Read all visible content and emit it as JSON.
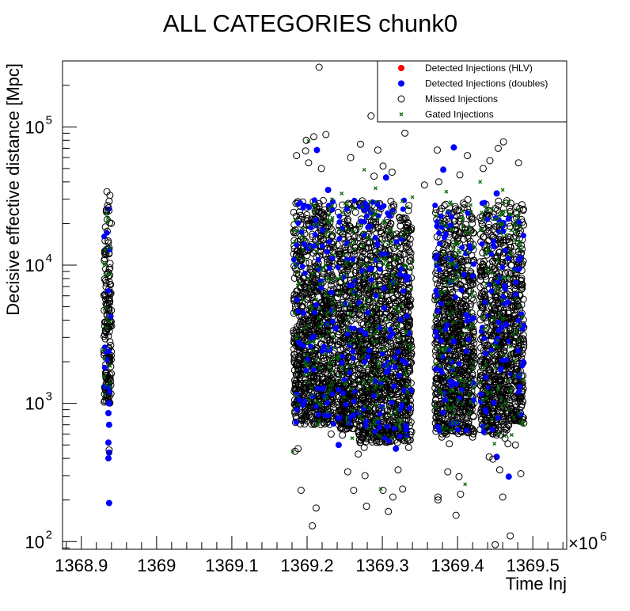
{
  "chart_data": {
    "type": "scatter",
    "title": "ALL CATEGORIES chunk0",
    "xlabel": "Time Inj",
    "ylabel": "Decisive effective distance [Mpc]",
    "x_multiplier_label": "×10",
    "x_multiplier_exp": "6",
    "xlim": [
      1368.875,
      1369.545
    ],
    "ylim": [
      88,
      300000
    ],
    "yscale": "log",
    "x_ticks": [
      "1368.9",
      "1369",
      "1369.1",
      "1369.2",
      "1369.3",
      "1369.4",
      "1369.5"
    ],
    "x_tick_values": [
      1368.9,
      1369.0,
      1369.1,
      1369.2,
      1369.3,
      1369.4,
      1369.5
    ],
    "y_ticks": [
      {
        "base": "10",
        "exp": "2",
        "value": 100
      },
      {
        "base": "10",
        "exp": "3",
        "value": 1000
      },
      {
        "base": "10",
        "exp": "4",
        "value": 10000
      },
      {
        "base": "10",
        "exp": "5",
        "value": 100000
      }
    ],
    "legend_position": "top-right",
    "series": [
      {
        "name": "Detected Injections (HLV)",
        "color": "#ff0000",
        "marker": "filled-circle",
        "points": []
      },
      {
        "name": "Detected Injections (doubles)",
        "color": "#0000ff",
        "marker": "filled-circle",
        "points": [
          [
            1368.937,
            190
          ],
          [
            1368.936,
            400
          ],
          [
            1368.937,
            440
          ],
          [
            1368.936,
            520
          ],
          [
            1368.937,
            700
          ],
          [
            1368.936,
            850
          ],
          [
            1368.937,
            1000
          ],
          [
            1369.213,
            68000
          ],
          [
            1369.228,
            35000
          ],
          [
            1369.305,
            43000
          ],
          [
            1369.381,
            49000
          ],
          [
            1369.395,
            71000
          ],
          [
            1369.452,
            33000
          ],
          [
            1369.452,
            410
          ],
          [
            1369.468,
            295
          ],
          [
            1369.242,
            500
          ],
          [
            1369.318,
            470
          ],
          [
            1369.332,
            650
          ],
          [
            1369.395,
            2800
          ],
          [
            1369.238,
            3500
          ]
        ]
      },
      {
        "name": "Missed Injections",
        "color": "#000000",
        "marker": "open-circle",
        "points": [
          [
            1368.934,
            34000
          ],
          [
            1368.938,
            32000
          ],
          [
            1368.937,
            29000
          ],
          [
            1368.935,
            27000
          ],
          [
            1368.936,
            26000
          ],
          [
            1368.937,
            460
          ],
          [
            1369.216,
            270000
          ],
          [
            1369.285,
            120000
          ],
          [
            1369.321,
            135000
          ],
          [
            1369.33,
            90000
          ],
          [
            1369.209,
            85000
          ],
          [
            1369.199,
            80000
          ],
          [
            1369.225,
            88000
          ],
          [
            1369.271,
            75000
          ],
          [
            1369.198,
            67000
          ],
          [
            1369.186,
            62000
          ],
          [
            1369.258,
            60000
          ],
          [
            1369.294,
            68000
          ],
          [
            1369.202,
            55000
          ],
          [
            1369.219,
            50000
          ],
          [
            1369.301,
            52000
          ],
          [
            1369.313,
            47000
          ],
          [
            1369.373,
            68000
          ],
          [
            1369.413,
            62000
          ],
          [
            1369.443,
            57000
          ],
          [
            1369.461,
            78000
          ],
          [
            1369.454,
            70000
          ],
          [
            1369.481,
            55000
          ],
          [
            1369.434,
            50000
          ],
          [
            1369.403,
            45000
          ],
          [
            1369.375,
            40000
          ],
          [
            1369.356,
            38000
          ],
          [
            1369.289,
            44000
          ],
          [
            1369.192,
            235
          ],
          [
            1369.207,
            130
          ],
          [
            1369.212,
            175
          ],
          [
            1369.254,
            320
          ],
          [
            1369.262,
            235
          ],
          [
            1369.276,
            480
          ],
          [
            1369.277,
            300
          ],
          [
            1369.279,
            180
          ],
          [
            1369.301,
            235
          ],
          [
            1369.308,
            165
          ],
          [
            1369.314,
            210
          ],
          [
            1369.321,
            330
          ],
          [
            1369.327,
            240
          ],
          [
            1369.335,
            480
          ],
          [
            1369.297,
            530
          ],
          [
            1369.284,
            590
          ],
          [
            1369.268,
            430
          ],
          [
            1369.374,
            200
          ],
          [
            1369.374,
            210
          ],
          [
            1369.387,
            320
          ],
          [
            1369.389,
            510
          ],
          [
            1369.398,
            155
          ],
          [
            1369.402,
            295
          ],
          [
            1369.404,
            220
          ],
          [
            1369.379,
            570
          ],
          [
            1369.42,
            570
          ],
          [
            1369.442,
            410
          ],
          [
            1369.447,
            395
          ],
          [
            1369.456,
            330
          ],
          [
            1369.46,
            210
          ],
          [
            1369.463,
            560
          ],
          [
            1369.467,
            510
          ],
          [
            1369.47,
            110
          ],
          [
            1369.477,
            500
          ],
          [
            1369.484,
            310
          ],
          [
            1369.45,
            95
          ],
          [
            1369.184,
            450
          ],
          [
            1369.188,
            470
          ],
          [
            1369.232,
            600
          ],
          [
            1369.247,
            590
          ],
          [
            1369.251,
            650
          ],
          [
            1369.301,
            610
          ],
          [
            1369.333,
            560
          ]
        ]
      },
      {
        "name": "Gated Injections",
        "color": "#006400",
        "marker": "x",
        "points": [
          [
            1369.202,
            79000
          ],
          [
            1369.276,
            49000
          ],
          [
            1369.291,
            36000
          ],
          [
            1369.34,
            31000
          ],
          [
            1369.181,
            450
          ],
          [
            1369.26,
            560
          ],
          [
            1369.298,
            240
          ],
          [
            1369.41,
            260
          ],
          [
            1369.449,
            510
          ],
          [
            1369.46,
            35000
          ],
          [
            1369.43,
            40000
          ],
          [
            1369.385,
            34000
          ],
          [
            1369.246,
            33000
          ],
          [
            1369.233,
            30000
          ]
        ]
      }
    ],
    "dense_bands": [
      {
        "x": [
          1368.93,
          1368.94
        ],
        "y": [
          1000,
          27000
        ]
      },
      {
        "x": [
          1369.182,
          1369.236
        ],
        "y": [
          700,
          30000
        ]
      },
      {
        "x": [
          1369.24,
          1369.265
        ],
        "y": [
          650,
          30000
        ]
      },
      {
        "x": [
          1369.268,
          1369.339
        ],
        "y": [
          520,
          30000
        ]
      },
      {
        "x": [
          1369.37,
          1369.422
        ],
        "y": [
          600,
          30000
        ]
      },
      {
        "x": [
          1369.43,
          1369.443
        ],
        "y": [
          620,
          30000
        ]
      },
      {
        "x": [
          1369.445,
          1369.472
        ],
        "y": [
          580,
          30000
        ]
      },
      {
        "x": [
          1369.474,
          1369.488
        ],
        "y": [
          700,
          28000
        ]
      }
    ]
  }
}
